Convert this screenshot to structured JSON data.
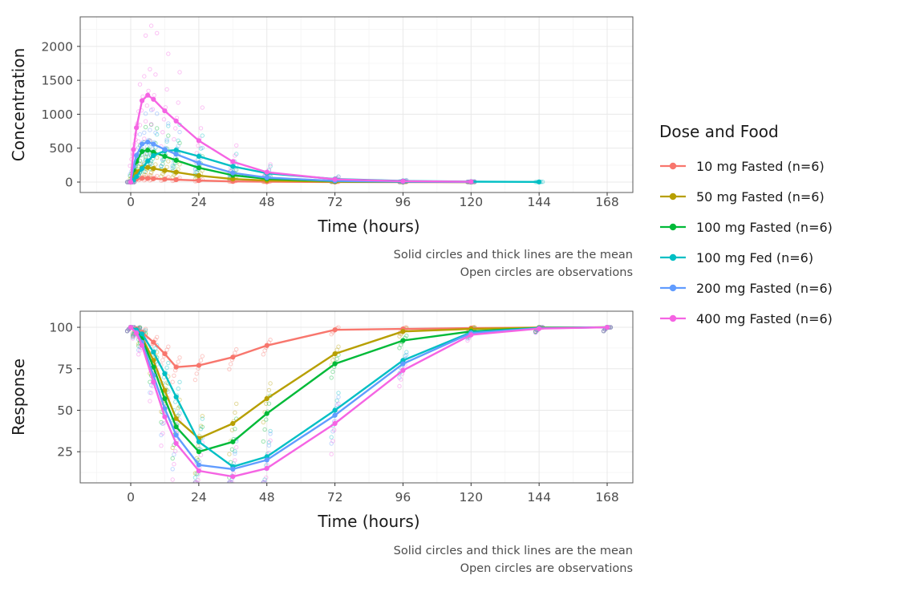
{
  "figure": {
    "background": "#ffffff",
    "axis_title_color": "#1a1a1a",
    "tick_label_color": "#4d4d4d",
    "caption_color": "#4d4d4d",
    "grid_major_color": "#e8e8e8",
    "grid_minor_color": "#f4f4f4",
    "panel_border_color": "#595959",
    "tick_mark_color": "#333333"
  },
  "legend": {
    "title": "Dose and Food",
    "position": "right",
    "entries": [
      {
        "label": "10 mg Fasted (n=6)",
        "color": "#F8766D"
      },
      {
        "label": "50 mg Fasted (n=6)",
        "color": "#B79F00"
      },
      {
        "label": "100 mg Fasted (n=6)",
        "color": "#00BA38"
      },
      {
        "label": "100 mg Fed (n=6)",
        "color": "#00BFC4"
      },
      {
        "label": "200 mg Fasted (n=6)",
        "color": "#619CFF"
      },
      {
        "label": "400 mg Fasted (n=6)",
        "color": "#F564E3"
      }
    ]
  },
  "chart_data": [
    {
      "type": "line",
      "panel": "concentration",
      "title": "",
      "xlabel": "Time (hours)",
      "ylabel": "Concentration",
      "x_ticks": [
        0,
        24,
        48,
        72,
        96,
        120,
        144,
        168
      ],
      "y_ticks": [
        0,
        500,
        1000,
        1500,
        2000
      ],
      "xlim": [
        -18,
        177
      ],
      "ylim": [
        -150,
        2440
      ],
      "grid": true,
      "legend_position": "right",
      "caption": [
        "Solid circles and thick lines are the mean",
        "Open circles are observations"
      ],
      "obs": {
        "multipliers": [
          0.5,
          0.7,
          0.88,
          1.05,
          1.3,
          1.8
        ],
        "x_jitter": 0.5,
        "opacity": 0.4
      },
      "series": [
        {
          "name": "10 mg Fasted (n=6)",
          "color": "#F8766D",
          "x": [
            0,
            1,
            2,
            4,
            6,
            8,
            12,
            16,
            24,
            36,
            48,
            72,
            96,
            120
          ],
          "y": [
            0,
            30,
            45,
            57,
            55,
            50,
            42,
            35,
            22,
            10,
            5,
            1.5,
            0.5,
            0.2
          ]
        },
        {
          "name": "50 mg Fasted (n=6)",
          "color": "#B79F00",
          "x": [
            0,
            1,
            2,
            4,
            6,
            8,
            12,
            16,
            24,
            36,
            48,
            72,
            96,
            120
          ],
          "y": [
            0,
            90,
            150,
            210,
            215,
            200,
            170,
            145,
            95,
            45,
            22,
            6,
            2,
            0.7
          ]
        },
        {
          "name": "100 mg Fasted (n=6)",
          "color": "#00BA38",
          "x": [
            0,
            1,
            2,
            4,
            6,
            8,
            12,
            16,
            24,
            36,
            48,
            72,
            96,
            120
          ],
          "y": [
            0,
            180,
            300,
            450,
            470,
            440,
            380,
            320,
            210,
            100,
            48,
            13,
            4,
            1.4
          ]
        },
        {
          "name": "100 mg Fed (n=6)",
          "color": "#00BFC4",
          "x": [
            0,
            1,
            2,
            4,
            6,
            8,
            12,
            16,
            24,
            36,
            48,
            72,
            96,
            120,
            144
          ],
          "y": [
            0,
            30,
            80,
            200,
            310,
            390,
            460,
            470,
            380,
            230,
            130,
            45,
            16,
            6,
            2
          ]
        },
        {
          "name": "200 mg Fasted (n=6)",
          "color": "#619CFF",
          "x": [
            0,
            1,
            2,
            4,
            6,
            8,
            12,
            16,
            24,
            36,
            48,
            72,
            96,
            120
          ],
          "y": [
            0,
            230,
            390,
            560,
            590,
            560,
            480,
            410,
            280,
            135,
            65,
            18,
            6,
            2
          ]
        },
        {
          "name": "400 mg Fasted (n=6)",
          "color": "#F564E3",
          "x": [
            0,
            1,
            2,
            4,
            6,
            8,
            12,
            16,
            24,
            36,
            48,
            72,
            96,
            120
          ],
          "y": [
            0,
            480,
            800,
            1200,
            1280,
            1220,
            1050,
            900,
            610,
            300,
            145,
            40,
            13,
            4.5
          ]
        }
      ]
    },
    {
      "type": "line",
      "panel": "response",
      "title": "",
      "xlabel": "Time (hours)",
      "ylabel": "Response",
      "x_ticks": [
        0,
        24,
        48,
        72,
        96,
        120,
        144,
        168
      ],
      "y_ticks": [
        25,
        50,
        75,
        100
      ],
      "xlim": [
        -18,
        177
      ],
      "ylim": [
        6,
        110
      ],
      "grid": true,
      "legend_position": "right",
      "caption": [
        "Solid circles and thick lines are the mean",
        "Open circles are observations"
      ],
      "obs": {
        "offsets": [
          -14,
          -8,
          -3,
          1,
          5,
          9
        ],
        "x_jitter": 0.5,
        "opacity": 0.4
      },
      "series": [
        {
          "name": "10 mg Fasted (n=6)",
          "color": "#F8766D",
          "x": [
            0,
            2,
            4,
            8,
            12,
            16,
            24,
            36,
            48,
            72,
            96,
            120,
            144,
            168
          ],
          "y": [
            100,
            99,
            97,
            91,
            84,
            76,
            77,
            82,
            89,
            98.5,
            99,
            99.5,
            99.8,
            100
          ]
        },
        {
          "name": "50 mg Fasted (n=6)",
          "color": "#B79F00",
          "x": [
            0,
            2,
            4,
            8,
            12,
            16,
            24,
            36,
            48,
            72,
            96,
            120,
            144,
            168
          ],
          "y": [
            100,
            98,
            94,
            80,
            62,
            45,
            33,
            42,
            57,
            84,
            97.5,
            99,
            99.8,
            100
          ]
        },
        {
          "name": "100 mg Fasted (n=6)",
          "color": "#00BA38",
          "x": [
            0,
            2,
            4,
            8,
            12,
            16,
            24,
            36,
            48,
            72,
            96,
            120,
            144,
            168
          ],
          "y": [
            100,
            97.5,
            93,
            76,
            57,
            40,
            25,
            31,
            48,
            78,
            92,
            97.5,
            99.7,
            100
          ]
        },
        {
          "name": "100 mg Fed (n=6)",
          "color": "#00BFC4",
          "x": [
            0,
            2,
            4,
            8,
            12,
            16,
            24,
            36,
            48,
            72,
            96,
            120,
            144,
            168
          ],
          "y": [
            100,
            98.5,
            96,
            85,
            72,
            58,
            31,
            16,
            22,
            50,
            80,
            97,
            99.5,
            100
          ]
        },
        {
          "name": "200 mg Fasted (n=6)",
          "color": "#619CFF",
          "x": [
            0,
            2,
            4,
            8,
            12,
            16,
            24,
            36,
            48,
            72,
            96,
            120,
            144,
            168
          ],
          "y": [
            100,
            97,
            91,
            71,
            51,
            35,
            17,
            14.5,
            20,
            47,
            78,
            96.5,
            99.4,
            100
          ]
        },
        {
          "name": "400 mg Fasted (n=6)",
          "color": "#F564E3",
          "x": [
            0,
            2,
            4,
            8,
            12,
            16,
            24,
            36,
            48,
            72,
            96,
            120,
            144,
            168
          ],
          "y": [
            100,
            96.5,
            89,
            67,
            46,
            30,
            13.5,
            10,
            15,
            42,
            74,
            95.5,
            99.2,
            100
          ]
        }
      ]
    }
  ]
}
